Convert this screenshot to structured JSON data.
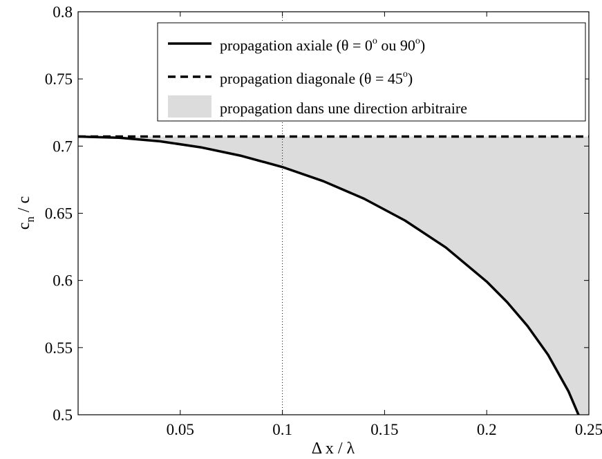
{
  "chart_data": {
    "type": "line",
    "xlabel": "Δ x / λ",
    "ylabel_main": "c",
    "ylabel_sub": "n",
    "ylabel_rest": " / c",
    "xlim": [
      0,
      0.25
    ],
    "ylim": [
      0.5,
      0.8
    ],
    "xticks": [
      0.05,
      0.1,
      0.15,
      0.2,
      0.25
    ],
    "xtick_labels": [
      "0.05",
      "0.1",
      "0.15",
      "0.2",
      "0.25"
    ],
    "yticks": [
      0.5,
      0.55,
      0.6,
      0.65,
      0.7,
      0.75,
      0.8
    ],
    "ytick_labels": [
      "0.5",
      "0.55",
      "0.6",
      "0.65",
      "0.7",
      "0.75",
      "0.8"
    ],
    "grid": false,
    "legend_position": "top-right",
    "vertical_reference_line": {
      "x": 0.1,
      "style": "dotted"
    },
    "series": [
      {
        "name": "propagation axiale (θ = 0° ou 90°)",
        "style": "solid",
        "x": [
          0.0,
          0.02,
          0.04,
          0.06,
          0.08,
          0.1,
          0.12,
          0.14,
          0.16,
          0.18,
          0.2,
          0.21,
          0.22,
          0.23,
          0.24,
          0.245,
          0.248,
          0.25
        ],
        "y": [
          0.7071,
          0.7062,
          0.7036,
          0.6991,
          0.6927,
          0.6844,
          0.6739,
          0.6608,
          0.6446,
          0.6245,
          0.5991,
          0.5838,
          0.566,
          0.5447,
          0.5175,
          0.4997,
          0.486,
          0.5
        ]
      },
      {
        "name": "propagation diagonale (θ = 45°)",
        "style": "dashed",
        "x": [
          0.0,
          0.25
        ],
        "y": [
          0.7071,
          0.7071
        ]
      }
    ],
    "shaded_region": {
      "name": "propagation dans une direction arbitraire",
      "color": "#dcdcdc",
      "between": [
        "propagation axiale (θ = 0° ou 90°)",
        "propagation diagonale (θ = 45°)"
      ]
    },
    "legend": {
      "axial": {
        "pre": "propagation axiale (θ = 0",
        "sup1": "o",
        "mid": " ou 90",
        "sup2": "o",
        "post": ")"
      },
      "diagonal": {
        "pre": "propagation diagonale (θ = 45",
        "sup": "o",
        "post": ")"
      },
      "region": "propagation dans une direction arbitraire"
    }
  }
}
